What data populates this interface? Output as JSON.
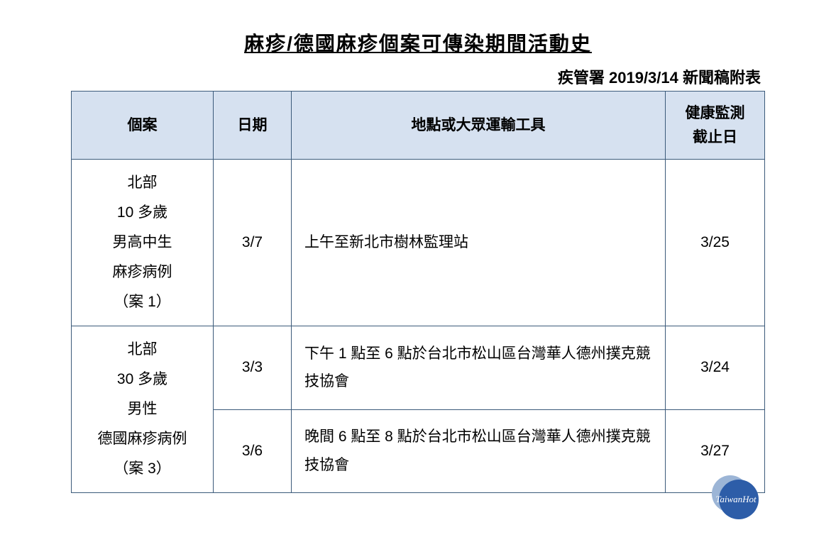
{
  "title": "麻疹/德國麻疹個案可傳染期間活動史",
  "subtitle": "疾管署 2019/3/14 新聞稿附表",
  "table": {
    "header_bg": "#d6e1f0",
    "border_color": "#3b5a7a",
    "columns": [
      {
        "label": "個案"
      },
      {
        "label": "日期"
      },
      {
        "label": "地點或大眾運輸工具"
      },
      {
        "label": "健康監測\n截止日"
      }
    ],
    "cases": [
      {
        "case_text": "北部\n10 多歲\n男高中生\n麻疹病例\n（案 1）",
        "entries": [
          {
            "date": "3/7",
            "location": "上午至新北市樹林監理站",
            "deadline": "3/25"
          }
        ]
      },
      {
        "case_text": "北部\n30 多歲\n男性\n德國麻疹病例\n（案 3）",
        "entries": [
          {
            "date": "3/3",
            "location": "下午 1 點至 6 點於台北市松山區台灣華人德州撲克競技協會",
            "deadline": "3/24"
          },
          {
            "date": "3/6",
            "location": "晚間 6 點至 8 點於台北市松山區台灣華人德州撲克競技協會",
            "deadline": "3/27"
          }
        ]
      }
    ]
  },
  "logo": {
    "text": "TaiwanHot",
    "back_color": "#9cb5d6",
    "front_color": "#2d5da8",
    "text_color": "#ffffff"
  }
}
